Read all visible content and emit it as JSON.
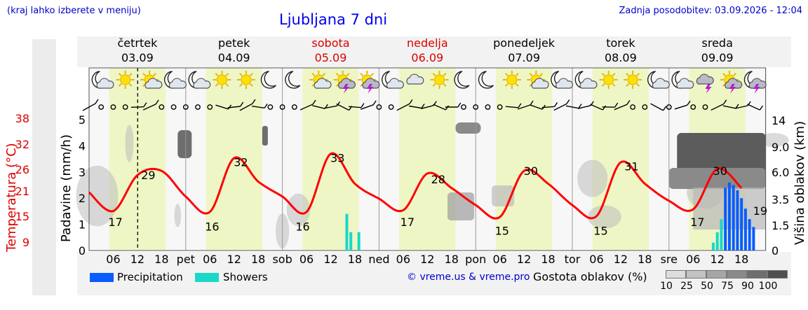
{
  "header": {
    "location_hint": "(kraj lahko izberete v meniju)",
    "title": "Ljubljana 7 dni",
    "updated": "Zadnja posodobitev: 03.09.2026 - 12:04"
  },
  "days": [
    {
      "name": "četrtek",
      "date": "03.09",
      "weekend": false
    },
    {
      "name": "petek",
      "date": "04.09",
      "weekend": false
    },
    {
      "name": "sobota",
      "date": "05.09",
      "weekend": true
    },
    {
      "name": "nedelja",
      "date": "06.09",
      "weekend": true
    },
    {
      "name": "ponedeljek",
      "date": "07.09",
      "weekend": false
    },
    {
      "name": "torek",
      "date": "08.09",
      "weekend": false
    },
    {
      "name": "sreda",
      "date": "09.09",
      "weekend": false
    }
  ],
  "icons": [
    "moon-cloud-icon",
    "sun-icon",
    "sun-cloud-icon",
    "moon-cloud-icon",
    "moon-cloud-icon",
    "sun-icon",
    "sun-icon",
    "moon-icon",
    "moon-icon",
    "sun-cloud-icon",
    "sun-storm-icon",
    "sun-storm-icon",
    "moon-cloud-icon",
    "cloud-icon",
    "sun-icon",
    "moon-icon",
    "moon-icon",
    "sun-icon",
    "sun-cloud-icon",
    "moon-cloud-icon",
    "moon-cloud-icon",
    "sun-icon",
    "sun-icon",
    "moon-cloud-icon",
    "moon-cloud-icon",
    "storm-cloud-icon",
    "sun-storm-icon",
    "moon-storm-icon"
  ],
  "axes": {
    "temperature_label": "Temperatura (°C)",
    "precip_label": "Padavine (mm/h)",
    "cloud_label": "Višina oblakov (km)",
    "temp_ticks": [
      "38",
      "32",
      "26",
      "21",
      "15",
      "9"
    ],
    "precip_ticks": [
      "0",
      "1",
      "2",
      "3",
      "4",
      "5"
    ],
    "cloud_ticks": [
      "0",
      "1.5",
      "3.5",
      "6.0",
      "9.0",
      "14"
    ],
    "x_day_labels": [
      "pet",
      "sob",
      "ned",
      "pon",
      "tor",
      "sre"
    ],
    "x_hour_labels": [
      "06",
      "12",
      "18"
    ]
  },
  "chart_data": {
    "type": "line",
    "title": "Ljubljana 7 dni",
    "xlabel": "",
    "ylabel": "Temperatura (°C)",
    "x": [
      "03.09 00",
      "03.09 06",
      "03.09 12",
      "03.09 18",
      "04.09 00",
      "04.09 06",
      "04.09 12",
      "04.09 18",
      "05.09 00",
      "05.09 06",
      "05.09 12",
      "05.09 18",
      "06.09 00",
      "06.09 06",
      "06.09 12",
      "06.09 18",
      "07.09 00",
      "07.09 06",
      "07.09 12",
      "07.09 18",
      "08.09 00",
      "08.09 06",
      "08.09 12",
      "08.09 18",
      "09.09 00",
      "09.09 06",
      "09.09 12",
      "09.09 18"
    ],
    "series": [
      {
        "name": "",
        "values": [
          21,
          16.6,
          25,
          26,
          20,
          16.4,
          29,
          23.5,
          20,
          16.4,
          30,
          23,
          19.5,
          16.8,
          25.4,
          22,
          18,
          15.2,
          26,
          23,
          18,
          15.4,
          28,
          23,
          19,
          17,
          26.5,
          22
        ],
        "color": "#ff0000"
      }
    ],
    "temperature_labels": [
      {
        "day": "03.09",
        "min": 17,
        "max": 29
      },
      {
        "day": "04.09",
        "min": 16,
        "max": 32
      },
      {
        "day": "05.09",
        "min": 16,
        "max": 33
      },
      {
        "day": "06.09",
        "min": 17,
        "max": 28
      },
      {
        "day": "07.09",
        "min": 15,
        "max": 30
      },
      {
        "day": "08.09",
        "min": 15,
        "max": 31
      },
      {
        "day": "09.09",
        "min": 17,
        "max": 30,
        "last": 19
      }
    ],
    "precipitation": [
      {
        "time": "05.09 16",
        "type": "Showers",
        "value": 1.4
      },
      {
        "time": "05.09 17",
        "type": "Showers",
        "value": 0.7
      },
      {
        "time": "05.09 19",
        "type": "Showers",
        "value": 0.7
      },
      {
        "time": "09.09 11",
        "type": "Showers",
        "value": 0.3
      },
      {
        "time": "09.09 12",
        "type": "Showers",
        "value": 0.7
      },
      {
        "time": "09.09 13",
        "type": "Showers",
        "value": 1.2
      },
      {
        "time": "09.09 14",
        "type": "Precipitation",
        "value": 2.4
      },
      {
        "time": "09.09 15",
        "type": "Precipitation",
        "value": 2.6
      },
      {
        "time": "09.09 16",
        "type": "Precipitation",
        "value": 2.5
      },
      {
        "time": "09.09 17",
        "type": "Precipitation",
        "value": 2.3
      },
      {
        "time": "09.09 18",
        "type": "Precipitation",
        "value": 2.0
      },
      {
        "time": "09.09 19",
        "type": "Precipitation",
        "value": 1.6
      },
      {
        "time": "09.09 20",
        "type": "Precipitation",
        "value": 1.2
      },
      {
        "time": "09.09 21",
        "type": "Precipitation",
        "value": 0.9
      }
    ],
    "temp_range": [
      9,
      38
    ],
    "precip_range": [
      0,
      5
    ],
    "cloud_height_range_km": [
      0,
      14
    ]
  },
  "legend": {
    "precipitation": "Precipitation",
    "showers": "Showers",
    "precip_color": "#0a5cff",
    "showers_color": "#19d8c8",
    "credit": "© vreme.us & vreme.pro",
    "cloud_density_title": "Gostota oblakov (%)",
    "cloud_density_levels": [
      "10",
      "25",
      "50",
      "75",
      "90",
      "100"
    ],
    "cloud_density_colors": [
      "#dddddd",
      "#c3c3c3",
      "#a6a6a6",
      "#8a8a8a",
      "#6e6e6e",
      "#505050"
    ]
  },
  "colors": {
    "day_shade": "#eef6c6",
    "night_shade": "#f7f7f7",
    "temp_line": "#ff0000",
    "now_line": "#000000"
  }
}
